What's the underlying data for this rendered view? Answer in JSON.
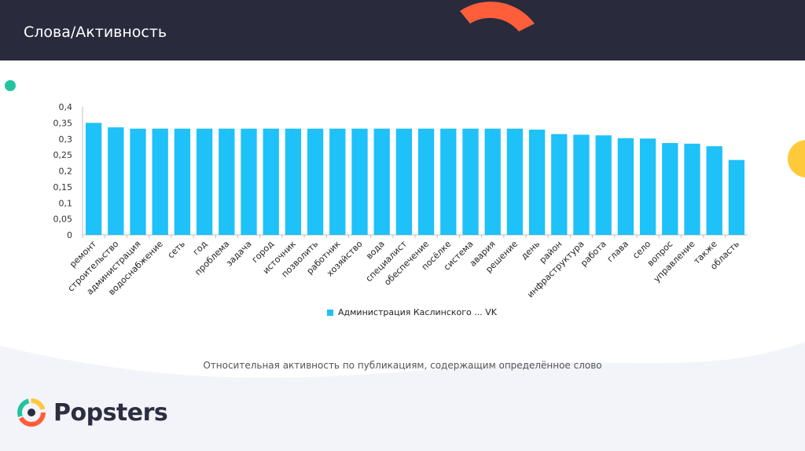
{
  "header": {
    "title": "Слова/Активность"
  },
  "caption": "Относительная активность по публикациям, содержащим определённое слово",
  "brand": {
    "name": "Popsters"
  },
  "colors": {
    "bar": "#1ec1f8",
    "header_bg": "#292b3d",
    "accent_orange": "#ff5e3a",
    "accent_green": "#22c4a0",
    "accent_yellow": "#ffc93c"
  },
  "chart_data": {
    "type": "bar",
    "categories": [
      "ремонт",
      "строительство",
      "администрация",
      "водоснабжение",
      "сеть",
      "год",
      "проблема",
      "задача",
      "город",
      "источник",
      "позволить",
      "работник",
      "хозяйство",
      "вода",
      "специалист",
      "обеспечение",
      "посёлке",
      "система",
      "авария",
      "решение",
      "день",
      "район",
      "инфраструктура",
      "работа",
      "глава",
      "село",
      "вопрос",
      "управление",
      "также",
      "область"
    ],
    "series": [
      {
        "name": "Администрация Каслинского ... VK",
        "values": [
          0.35,
          0.336,
          0.332,
          0.332,
          0.332,
          0.332,
          0.332,
          0.332,
          0.332,
          0.332,
          0.332,
          0.332,
          0.332,
          0.332,
          0.332,
          0.332,
          0.332,
          0.332,
          0.332,
          0.332,
          0.329,
          0.315,
          0.313,
          0.311,
          0.302,
          0.301,
          0.287,
          0.285,
          0.277,
          0.234
        ]
      }
    ],
    "yticks": [
      "0",
      "0,05",
      "0,1",
      "0,15",
      "0,2",
      "0,25",
      "0,3",
      "0,35",
      "0,4"
    ],
    "ylim": [
      0,
      0.4
    ],
    "legend_position": "bottom"
  }
}
